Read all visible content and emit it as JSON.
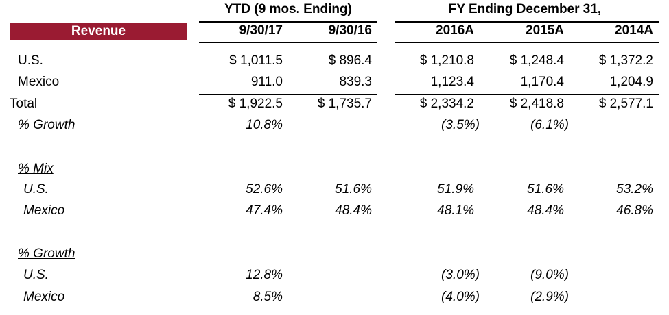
{
  "header": {
    "revenue_label": "Revenue",
    "ytd_group": "YTD (9 mos. Ending)",
    "fy_group": "FY Ending December 31,",
    "columns": [
      "9/30/17",
      "9/30/16",
      "2016A",
      "2015A",
      "2014A"
    ]
  },
  "colors": {
    "revenue_box": "#9a1b32",
    "revenue_text": "#ffffff"
  },
  "rows": {
    "us": {
      "label": "U.S.",
      "values": [
        "$ 1,011.5",
        "$ 896.4",
        "$ 1,210.8",
        "$ 1,248.4",
        "$ 1,372.2"
      ]
    },
    "mexico": {
      "label": "Mexico",
      "values": [
        "911.0",
        "839.3",
        "1,123.4",
        "1,170.4",
        "1,204.9"
      ]
    },
    "total": {
      "label": "Total",
      "values": [
        "$ 1,922.5",
        "$ 1,735.7",
        "$ 2,334.2",
        "$ 2,418.8",
        "$ 2,577.1"
      ]
    },
    "growth": {
      "label": "% Growth",
      "values": [
        "10.8%",
        "",
        "(3.5%)",
        "(6.1%)",
        ""
      ]
    }
  },
  "mix": {
    "title": "% Mix",
    "us": {
      "label": "U.S.",
      "values": [
        "52.6%",
        "51.6%",
        "51.9%",
        "51.6%",
        "53.2%"
      ]
    },
    "mexico": {
      "label": "Mexico",
      "values": [
        "47.4%",
        "48.4%",
        "48.1%",
        "48.4%",
        "46.8%"
      ]
    }
  },
  "growth_section": {
    "title": "% Growth",
    "us": {
      "label": "U.S.",
      "values": [
        "12.8%",
        "",
        "(3.0%)",
        "(9.0%)",
        ""
      ]
    },
    "mexico": {
      "label": "Mexico",
      "values": [
        "8.5%",
        "",
        "(4.0%)",
        "(2.9%)",
        ""
      ]
    }
  }
}
